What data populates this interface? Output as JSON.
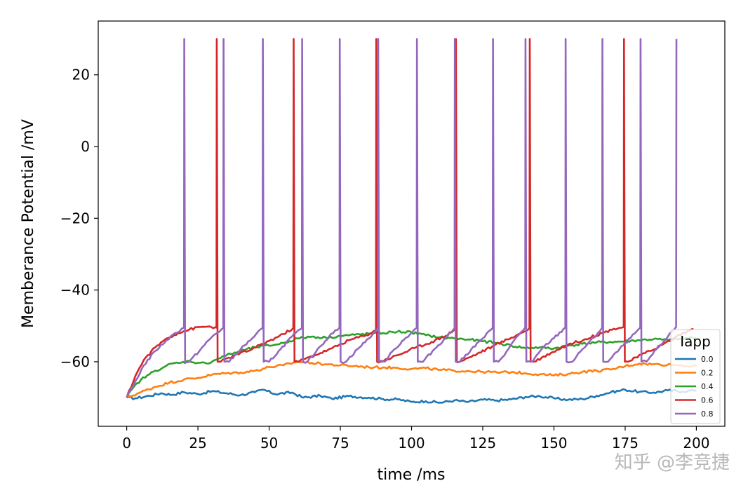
{
  "chart_data": {
    "type": "line",
    "xlabel": "time /ms",
    "ylabel": "Memberance Potential /mV",
    "xlim": [
      -10,
      210
    ],
    "ylim": [
      -78,
      35
    ],
    "xticks": [
      0,
      25,
      50,
      75,
      100,
      125,
      150,
      175,
      200
    ],
    "yticks": [
      -60,
      -40,
      -20,
      0,
      20
    ],
    "grid": false,
    "legend": {
      "title": "Iapp",
      "location": "lower-right"
    },
    "series": [
      {
        "name": "0.0",
        "color": "#1f77b4",
        "x": [
          0,
          3,
          8,
          12,
          16,
          20,
          25,
          30,
          35,
          40,
          45,
          48,
          52,
          58,
          62,
          68,
          72,
          78,
          85,
          90,
          95,
          100,
          105,
          110,
          115,
          120,
          125,
          130,
          135,
          140,
          145,
          150,
          155,
          160,
          165,
          170,
          175,
          180,
          185,
          190,
          195,
          200
        ],
        "y": [
          -70,
          -70.2,
          -69.5,
          -68.8,
          -69.2,
          -68.5,
          -69,
          -68.2,
          -68.8,
          -69.3,
          -68.5,
          -67.8,
          -69,
          -68.6,
          -70,
          -69.5,
          -70.3,
          -69.6,
          -70,
          -70.4,
          -70.5,
          -71.2,
          -71,
          -71.4,
          -70.8,
          -71.2,
          -70.6,
          -70.8,
          -70.5,
          -69.8,
          -69.6,
          -70.2,
          -70.6,
          -70.4,
          -69.5,
          -68.5,
          -67.8,
          -68.4,
          -68.6,
          -68,
          -68.3,
          -67.9
        ]
      },
      {
        "name": "0.2",
        "color": "#ff7f0e",
        "x": [
          0,
          5,
          10,
          15,
          20,
          25,
          30,
          35,
          40,
          45,
          50,
          55,
          60,
          65,
          70,
          75,
          80,
          85,
          90,
          95,
          100,
          105,
          110,
          115,
          120,
          125,
          130,
          135,
          140,
          145,
          150,
          155,
          160,
          165,
          170,
          175,
          180,
          185,
          190,
          195,
          200
        ],
        "y": [
          -70,
          -68.5,
          -67,
          -65.8,
          -65,
          -64.5,
          -63.6,
          -63.2,
          -63,
          -62.5,
          -61.5,
          -61,
          -60,
          -60.3,
          -60.7,
          -61,
          -61.2,
          -61.5,
          -61.6,
          -61.7,
          -62,
          -61.8,
          -62.3,
          -62.5,
          -62.6,
          -62.8,
          -63,
          -62.9,
          -63.2,
          -63.5,
          -63.8,
          -63.4,
          -62.8,
          -62.5,
          -62.2,
          -61.2,
          -60.5,
          -60.7,
          -60.8,
          -61,
          -61.3
        ]
      },
      {
        "name": "0.4",
        "color": "#2ca02c",
        "x": [
          0,
          2,
          5,
          8,
          10,
          13,
          16,
          19,
          22,
          25,
          28,
          31,
          35,
          40,
          45,
          50,
          55,
          60,
          65,
          70,
          75,
          80,
          85,
          90,
          95,
          100,
          105,
          110,
          115,
          120,
          125,
          130,
          135,
          140,
          145,
          150,
          155,
          160,
          165,
          170,
          175,
          180,
          185,
          190,
          195,
          200
        ],
        "y": [
          -70,
          -67.5,
          -65,
          -63.5,
          -62.5,
          -61.5,
          -60.5,
          -60.3,
          -59.8,
          -60.3,
          -60.5,
          -59.5,
          -58.2,
          -57,
          -56,
          -55.5,
          -54.8,
          -53.5,
          -53,
          -53.3,
          -52.8,
          -52.5,
          -52.2,
          -52,
          -51.6,
          -51.8,
          -52.6,
          -53.2,
          -53.5,
          -53.8,
          -54.3,
          -54.8,
          -55.5,
          -56.2,
          -56,
          -56.3,
          -55.5,
          -55,
          -54.6,
          -54.5,
          -54.3,
          -54,
          -53.7,
          -54,
          -53.6,
          -53.2
        ]
      },
      {
        "name": "0.6",
        "color": "#d62728",
        "spikes": [
          31.7,
          58.7,
          87.6,
          115.6,
          141.5,
          174.6
        ],
        "x": [
          0,
          3,
          6,
          10,
          14,
          18,
          22,
          26,
          28.5,
          31,
          31.5,
          31.6,
          31.9,
          33,
          38,
          44,
          50,
          55,
          58.5,
          58.6,
          58.9,
          60,
          66,
          72,
          78,
          84,
          87.5,
          87.6,
          87.9,
          89,
          95,
          101,
          107,
          112,
          115.5,
          115.6,
          115.9,
          117,
          123,
          129,
          135,
          139,
          141.4,
          141.5,
          141.8,
          143,
          149,
          155,
          161,
          167,
          171,
          174.5,
          174.6,
          174.9,
          176,
          182,
          188,
          194,
          199
        ],
        "y": [
          -70,
          -64,
          -59.5,
          -56,
          -53.5,
          -52,
          -51,
          -50.3,
          -50.2,
          -50.4,
          -50.5,
          30,
          -60,
          -60,
          -58.2,
          -56.5,
          -54.2,
          -52.3,
          -50.6,
          30,
          -60,
          -60,
          -58.2,
          -56.3,
          -54,
          -52.6,
          -51.3,
          30,
          -60,
          -60,
          -58.2,
          -56.2,
          -54.5,
          -52.8,
          -50.8,
          30,
          -60,
          -60,
          -57.8,
          -55.5,
          -53.3,
          -51.8,
          -50.7,
          30,
          -60,
          -60,
          -57.5,
          -55.2,
          -53.7,
          -52,
          -50.8,
          -50.3,
          30,
          -60,
          -60,
          -57.6,
          -55.3,
          -52.5,
          -50.8
        ]
      },
      {
        "name": "0.8",
        "color": "#9467bd",
        "spikes": [
          20.2,
          34,
          47.8,
          61.6,
          74.8,
          88.3,
          101.9,
          115.2,
          128.6,
          140,
          154.1,
          167,
          180.4,
          193
        ],
        "x": [
          0,
          3,
          6,
          10,
          14,
          17,
          20.1,
          20.2,
          20.5,
          22,
          26,
          30,
          33.9,
          34,
          34.3,
          36,
          40,
          44,
          47.7,
          47.8,
          48.1,
          50,
          54,
          58,
          61.5,
          61.6,
          61.9,
          63.5,
          67,
          71,
          74.7,
          74.8,
          75.1,
          77,
          81,
          85,
          88.2,
          88.3,
          88.6,
          90.5,
          94,
          98,
          101.8,
          101.9,
          102.2,
          104,
          108,
          112,
          115.1,
          115.2,
          115.5,
          117,
          121,
          125,
          128.5,
          128.6,
          128.9,
          130.5,
          134,
          137,
          139.9,
          140,
          140.3,
          142.5,
          146,
          150,
          154,
          154.1,
          154.4,
          156.5,
          160,
          164,
          166.9,
          167,
          167.3,
          169,
          173,
          177,
          180.3,
          180.4,
          180.7,
          182.5,
          186,
          190,
          192.9,
          193
        ],
        "y": [
          -70,
          -65.5,
          -61,
          -57,
          -54,
          -52,
          -50.5,
          30,
          -60,
          -60,
          -56.5,
          -53,
          -50.6,
          30,
          -60,
          -60,
          -56.5,
          -53.5,
          -50.6,
          30,
          -60,
          -60,
          -56.5,
          -53,
          -50.7,
          30,
          -60,
          -60,
          -56.5,
          -53,
          -50.5,
          30,
          -60,
          -60,
          -56.5,
          -53.5,
          -50.6,
          30,
          -60,
          -60,
          -56.5,
          -53.3,
          -50.6,
          30,
          -60,
          -60,
          -56.5,
          -53.3,
          -50.6,
          30,
          -60,
          -60,
          -56.5,
          -53.5,
          -50.6,
          30,
          -60,
          -60,
          -56.5,
          -53,
          -50.5,
          30,
          -60,
          -60,
          -56.2,
          -53.4,
          -50.5,
          30,
          -60,
          -60,
          -56.5,
          -53.3,
          -50.5,
          30,
          -60,
          -60,
          -56.5,
          -53.3,
          -50.5,
          30,
          -60,
          -60,
          -56.5,
          -53,
          -50.3,
          30
        ]
      }
    ]
  },
  "watermark": "知乎 @李竞捷"
}
